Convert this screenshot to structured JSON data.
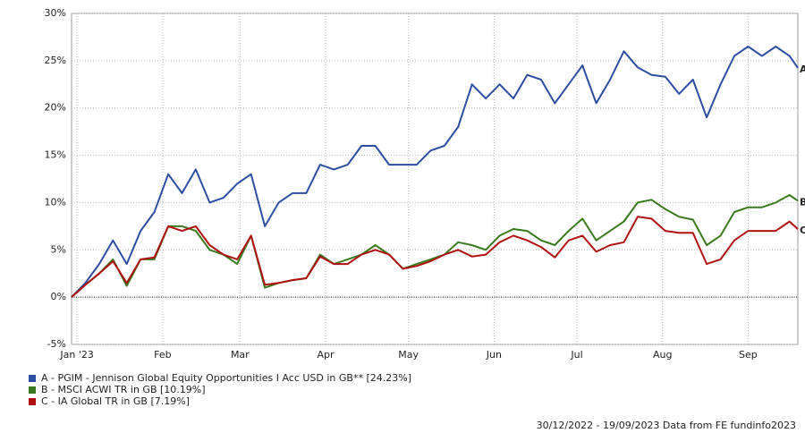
{
  "chart_data": {
    "type": "line",
    "x": [
      0,
      5,
      10,
      15,
      20,
      25,
      30,
      35,
      40,
      45,
      50,
      55,
      60,
      65,
      70,
      75,
      80,
      85,
      90,
      95,
      100,
      105,
      110,
      115,
      120,
      125,
      130,
      135,
      140,
      145,
      150,
      155,
      160,
      165,
      170,
      175,
      180,
      185,
      190,
      195,
      200,
      205,
      210,
      215,
      220,
      225,
      230,
      235,
      240,
      245,
      250,
      255,
      260,
      263
    ],
    "xlim": [
      0,
      263
    ],
    "xticks": [
      {
        "value": 2,
        "label": "Jan '23"
      },
      {
        "value": 33,
        "label": "Feb"
      },
      {
        "value": 61,
        "label": "Mar"
      },
      {
        "value": 92,
        "label": "Apr"
      },
      {
        "value": 122,
        "label": "May"
      },
      {
        "value": 153,
        "label": "Jun"
      },
      {
        "value": 183,
        "label": "Jul"
      },
      {
        "value": 214,
        "label": "Aug"
      },
      {
        "value": 245,
        "label": "Sep"
      }
    ],
    "ylim": [
      -5,
      30
    ],
    "yticks": [
      {
        "value": -5,
        "label": "-5%"
      },
      {
        "value": 0,
        "label": "0%"
      },
      {
        "value": 5,
        "label": "5%"
      },
      {
        "value": 10,
        "label": "10%"
      },
      {
        "value": 15,
        "label": "15%"
      },
      {
        "value": 20,
        "label": "20%"
      },
      {
        "value": 25,
        "label": "25%"
      },
      {
        "value": 30,
        "label": "30%"
      }
    ],
    "grid": true,
    "series": [
      {
        "name": "A - PGIM - Jennison Global Equity Opportunities I Acc USD in GB** [24.23%]",
        "end_label": "A",
        "color": "#2b4ea2",
        "values": [
          0,
          1.5,
          3.5,
          6,
          3.5,
          7,
          9,
          13,
          11,
          13.5,
          10,
          10.5,
          12,
          13,
          7.5,
          10,
          11,
          11,
          14,
          13.5,
          14,
          16,
          16,
          14,
          14,
          14,
          15.5,
          16,
          18,
          22.5,
          21,
          22.5,
          21,
          23.5,
          23,
          20.5,
          22.5,
          24.5,
          20.5,
          23,
          26,
          24.3,
          23.5,
          23.3,
          21.5,
          23,
          19,
          22.5,
          25.5,
          26.5,
          25.5,
          26.5,
          25.5,
          24.23
        ]
      },
      {
        "name": "B - MSCI ACWI TR in GB [10.19%]",
        "end_label": "B",
        "color": "#3a7a1f",
        "values": [
          0,
          1.3,
          2.5,
          4,
          1.2,
          4,
          4,
          7.5,
          7.5,
          7,
          5,
          4.5,
          3.5,
          6.5,
          1,
          1.5,
          1.8,
          2,
          4.5,
          3.5,
          4,
          4.5,
          5.5,
          4.5,
          3,
          3.5,
          4,
          4.5,
          5.8,
          5.5,
          5,
          6.5,
          7.2,
          7,
          6,
          5.5,
          7,
          8.3,
          6,
          7,
          8,
          10,
          10.3,
          9.3,
          8.5,
          8.2,
          5.5,
          6.5,
          9,
          9.5,
          9.5,
          10,
          10.8,
          10.19
        ]
      },
      {
        "name": "C - IA Global TR in GB [7.19%]",
        "end_label": "C",
        "color": "#b01010",
        "values": [
          0,
          1.3,
          2.5,
          3.8,
          1.5,
          4,
          4.2,
          7.5,
          7,
          7.5,
          5.5,
          4.5,
          4,
          6.5,
          1.3,
          1.5,
          1.8,
          2,
          4.3,
          3.5,
          3.5,
          4.5,
          5,
          4.5,
          3,
          3.3,
          3.8,
          4.5,
          5,
          4.3,
          4.5,
          5.8,
          6.5,
          6,
          5.3,
          4.2,
          6,
          6.5,
          4.8,
          5.5,
          5.8,
          8.5,
          8.3,
          7,
          6.8,
          6.8,
          3.5,
          4,
          6,
          7,
          7,
          7,
          8,
          7.19
        ]
      }
    ],
    "footer": "30/12/2022 - 19/09/2023 Data from FE fundinfo2023"
  }
}
